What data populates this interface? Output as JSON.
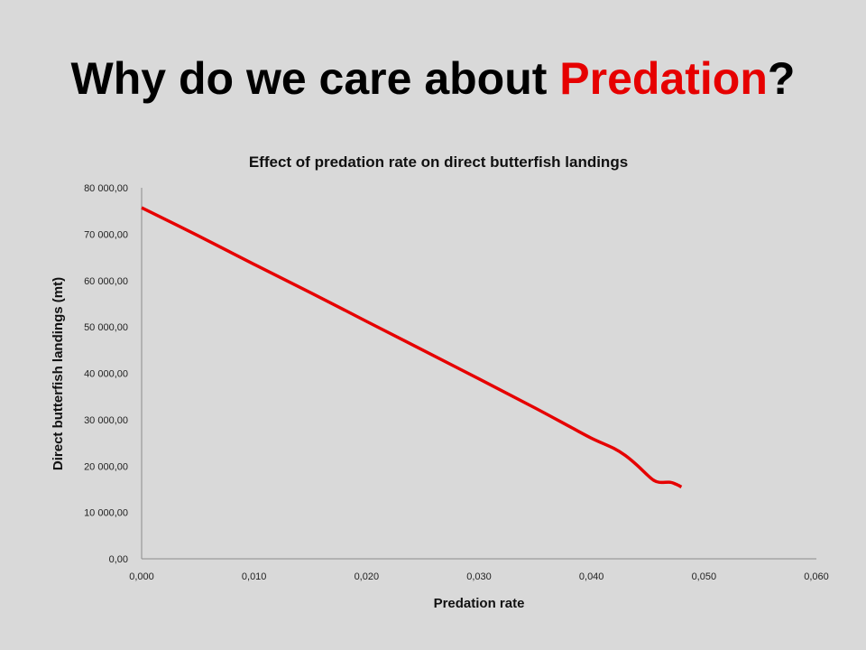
{
  "slide": {
    "title_pre": "Why do we care about ",
    "title_accent": "Predation",
    "title_post": "?",
    "accent_color": "#e60000",
    "background_color": "#d9d9d9"
  },
  "chart_data": {
    "type": "line",
    "title": "Effect of predation rate on direct butterfish landings",
    "xlabel": "Predation rate",
    "ylabel": "Direct butterfish landings (mt)",
    "xlim": [
      0,
      0.06
    ],
    "ylim": [
      0,
      80000
    ],
    "x_ticks": [
      "0,000",
      "0,010",
      "0,020",
      "0,030",
      "0,040",
      "0,050",
      "0,060"
    ],
    "y_ticks": [
      "0,00",
      "10 000,00",
      "20 000,00",
      "30 000,00",
      "40 000,00",
      "50 000,00",
      "60 000,00",
      "70 000,00",
      "80 000,00"
    ],
    "grid": false,
    "legend": "none",
    "series": [
      {
        "color": "#e60000",
        "points": [
          [
            0.0,
            75700
          ],
          [
            0.005,
            69700
          ],
          [
            0.01,
            63500
          ],
          [
            0.015,
            57400
          ],
          [
            0.02,
            51200
          ],
          [
            0.025,
            45000
          ],
          [
            0.03,
            38800
          ],
          [
            0.035,
            32500
          ],
          [
            0.038,
            28600
          ],
          [
            0.04,
            26000
          ],
          [
            0.042,
            23800
          ],
          [
            0.043,
            22300
          ],
          [
            0.044,
            20300
          ],
          [
            0.045,
            18000
          ],
          [
            0.0455,
            17000
          ],
          [
            0.046,
            16500
          ],
          [
            0.047,
            16500
          ],
          [
            0.0475,
            16100
          ],
          [
            0.048,
            15500
          ]
        ]
      }
    ]
  }
}
